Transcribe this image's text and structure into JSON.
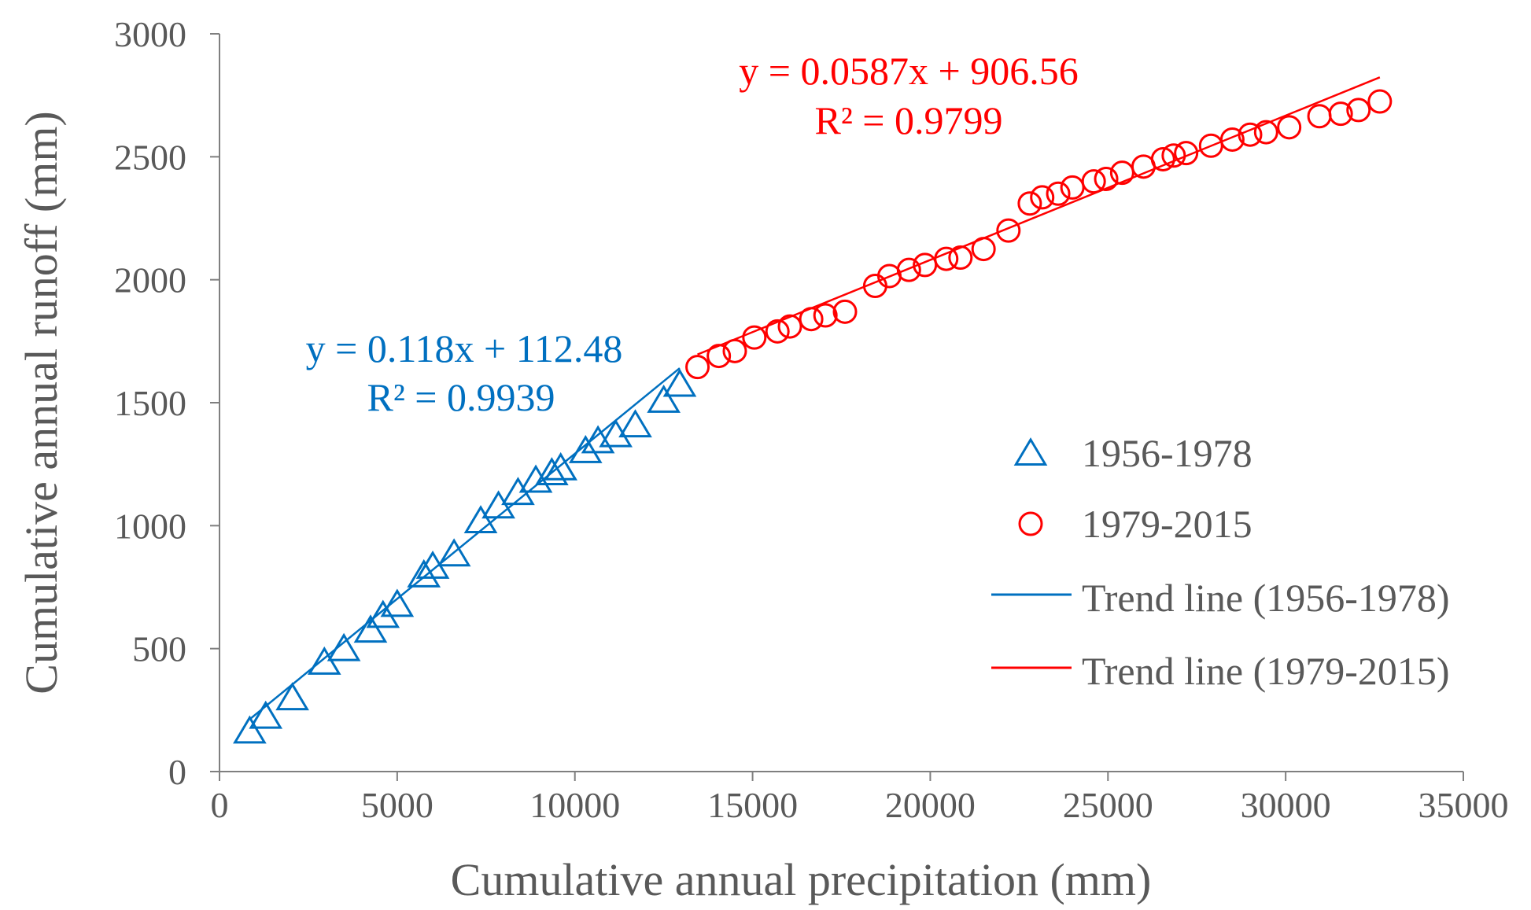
{
  "chart_data": {
    "type": "scatter",
    "xlabel": "Cumulative annual precipitation (mm)",
    "ylabel": "Cumulative annual runoff (mm)",
    "xlim": [
      0,
      35000
    ],
    "ylim": [
      0,
      3000
    ],
    "xticks": [
      0,
      5000,
      10000,
      15000,
      20000,
      25000,
      30000,
      35000
    ],
    "yticks": [
      0,
      500,
      1000,
      1500,
      2000,
      2500,
      3000
    ],
    "grid": false,
    "legend_position": "right",
    "series": [
      {
        "name": "1956-1978",
        "marker": "triangle",
        "color": "#0070C0",
        "points": [
          [
            850,
            165
          ],
          [
            1300,
            225
          ],
          [
            2050,
            300
          ],
          [
            2950,
            445
          ],
          [
            3500,
            500
          ],
          [
            4250,
            575
          ],
          [
            4600,
            635
          ],
          [
            5000,
            680
          ],
          [
            5750,
            800
          ],
          [
            6000,
            835
          ],
          [
            6600,
            885
          ],
          [
            7350,
            1020
          ],
          [
            7850,
            1080
          ],
          [
            8400,
            1135
          ],
          [
            8900,
            1185
          ],
          [
            9350,
            1215
          ],
          [
            9600,
            1235
          ],
          [
            10300,
            1305
          ],
          [
            10650,
            1345
          ],
          [
            11150,
            1370
          ],
          [
            11700,
            1410
          ],
          [
            12500,
            1510
          ],
          [
            12950,
            1575
          ]
        ]
      },
      {
        "name": "1979-2015",
        "marker": "circle",
        "color": "#FF0000",
        "points": [
          [
            13450,
            1645
          ],
          [
            14050,
            1690
          ],
          [
            14500,
            1710
          ],
          [
            15050,
            1765
          ],
          [
            15700,
            1790
          ],
          [
            16050,
            1810
          ],
          [
            16650,
            1840
          ],
          [
            17050,
            1855
          ],
          [
            17600,
            1870
          ],
          [
            18450,
            1975
          ],
          [
            18850,
            2015
          ],
          [
            19400,
            2040
          ],
          [
            19850,
            2060
          ],
          [
            20450,
            2085
          ],
          [
            20850,
            2090
          ],
          [
            21500,
            2125
          ],
          [
            22200,
            2200
          ],
          [
            22800,
            2310
          ],
          [
            23150,
            2335
          ],
          [
            23600,
            2350
          ],
          [
            24000,
            2375
          ],
          [
            24600,
            2400
          ],
          [
            24950,
            2410
          ],
          [
            25400,
            2435
          ],
          [
            26000,
            2460
          ],
          [
            26550,
            2490
          ],
          [
            26850,
            2505
          ],
          [
            27200,
            2515
          ],
          [
            27900,
            2545
          ],
          [
            28500,
            2570
          ],
          [
            29000,
            2590
          ],
          [
            29450,
            2600
          ],
          [
            30100,
            2620
          ],
          [
            30950,
            2665
          ],
          [
            31550,
            2675
          ],
          [
            32050,
            2690
          ],
          [
            32650,
            2725
          ]
        ]
      }
    ],
    "trendlines": [
      {
        "name": "Trend line (1956-1978)",
        "color": "#0070C0",
        "slope": 0.118,
        "intercept": 112.48,
        "x_range": [
          850,
          12950
        ]
      },
      {
        "name": "Trend line (1979-2015)",
        "color": "#FF0000",
        "slope": 0.0587,
        "intercept": 906.56,
        "x_range": [
          13450,
          32650
        ]
      }
    ],
    "annotations": {
      "blue_equation": "y = 0.118x + 112.48",
      "blue_r2": "R² = 0.9939",
      "red_equation": "y = 0.0587x + 906.56",
      "red_r2": "R² = 0.9799"
    },
    "legend": [
      {
        "label": "1956-1978",
        "type": "triangle",
        "color": "#0070C0"
      },
      {
        "label": "1979-2015",
        "type": "circle",
        "color": "#FF0000"
      },
      {
        "label": "Trend line (1956-1978)",
        "type": "line",
        "color": "#0070C0"
      },
      {
        "label": "Trend line (1979-2015)",
        "type": "line",
        "color": "#FF0000"
      }
    ]
  }
}
